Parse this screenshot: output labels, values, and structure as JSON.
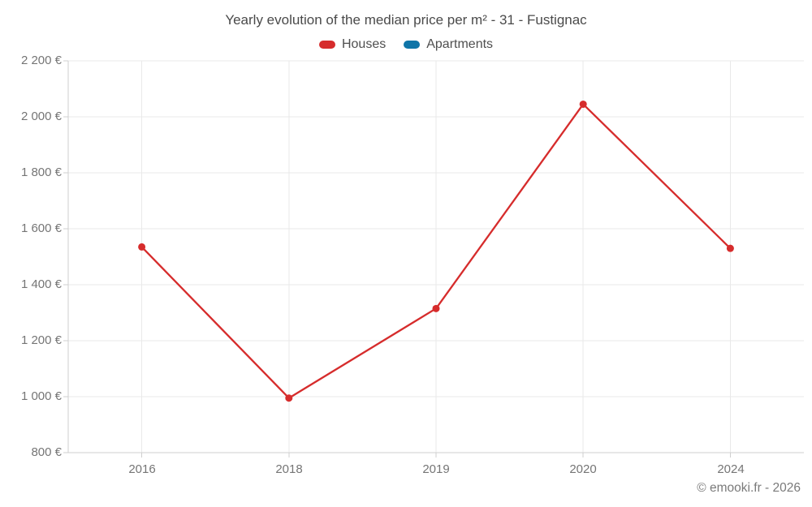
{
  "page": {
    "title": "Yearly evolution of the median price per m² - 31 - Fustignac",
    "footer_credit": "© emooki.fr - 2026"
  },
  "legend": {
    "items": [
      {
        "label": "Houses",
        "color": "#d62c2c"
      },
      {
        "label": "Apartments",
        "color": "#0f75a8"
      }
    ]
  },
  "chart_data": {
    "type": "line",
    "title": "Yearly evolution of the median price per m² - 31 - Fustignac",
    "categories": [
      "2016",
      "2018",
      "2019",
      "2020",
      "2024"
    ],
    "series": [
      {
        "name": "Houses",
        "color": "#d62c2c",
        "values": [
          1535,
          995,
          1315,
          2045,
          1530
        ]
      },
      {
        "name": "Apartments",
        "color": "#0f75a8",
        "values": []
      }
    ],
    "xlabel": "",
    "ylabel": "",
    "ylim": [
      800,
      2200
    ],
    "y_ticks": [
      2200,
      2000,
      1800,
      1600,
      1400,
      1200,
      1000,
      800
    ],
    "y_tick_labels": [
      "2 200 €",
      "2 000 €",
      "1 800 €",
      "1 600 €",
      "1 400 €",
      "1 200 €",
      "1 000 €",
      "800 €"
    ],
    "grid": true,
    "legend_position": "top",
    "marker": "circle",
    "currency_suffix": "€",
    "colors": {
      "gridline": "#e9e9e9",
      "axis": "#cfcfcf",
      "tick_label": "#757575"
    }
  }
}
